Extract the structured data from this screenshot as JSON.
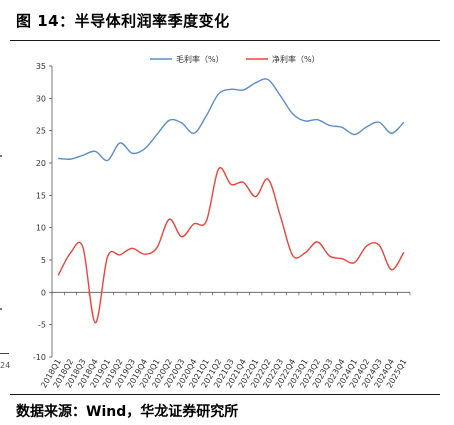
{
  "header": {
    "title": "图 14：半导体利润率季度变化"
  },
  "footer": {
    "source": "数据来源：Wind，华龙证券研究所"
  },
  "edge": {
    "fragment_text": "24"
  },
  "chart_data": {
    "type": "line",
    "categories": [
      "2018Q1",
      "2018Q2",
      "2018Q3",
      "2018Q4",
      "2019Q1",
      "2019Q2",
      "2019Q3",
      "2019Q4",
      "2020Q1",
      "2020Q2",
      "2020Q3",
      "2020Q4",
      "2021Q1",
      "2021Q2",
      "2021Q3",
      "2021Q4",
      "2022Q1",
      "2022Q2",
      "2022Q3",
      "2022Q4",
      "2023Q1",
      "2023Q2",
      "2023Q3",
      "2023Q4",
      "2024Q1",
      "2024Q2",
      "2024Q3",
      "2024Q4",
      "2025Q1"
    ],
    "series": [
      {
        "name": "毛利率（%）",
        "color": "#5b8ec9",
        "values": [
          20.7,
          20.6,
          21.2,
          21.8,
          20.4,
          23.1,
          21.5,
          22.2,
          24.4,
          26.6,
          26.2,
          24.6,
          27.3,
          30.7,
          31.4,
          31.3,
          32.4,
          32.9,
          30.4,
          27.6,
          26.5,
          26.7,
          25.8,
          25.5,
          24.4,
          25.6,
          26.3,
          24.6,
          26.3
        ]
      },
      {
        "name": "净利率（%）",
        "color": "#e8453c",
        "values": [
          2.6,
          6.1,
          7.0,
          -4.7,
          5.5,
          5.8,
          6.8,
          5.9,
          6.9,
          11.3,
          8.6,
          10.6,
          11.0,
          19.1,
          16.7,
          17.0,
          14.8,
          17.5,
          11.8,
          5.7,
          6.1,
          7.8,
          5.6,
          5.2,
          4.6,
          7.2,
          7.3,
          3.5,
          6.2
        ]
      }
    ],
    "ylim": [
      -10,
      35
    ],
    "yticks": [
      "-10",
      "-5",
      "0",
      "5",
      "10",
      "15",
      "20",
      "25",
      "30",
      "35"
    ],
    "legend_position": "top",
    "grid": false
  }
}
